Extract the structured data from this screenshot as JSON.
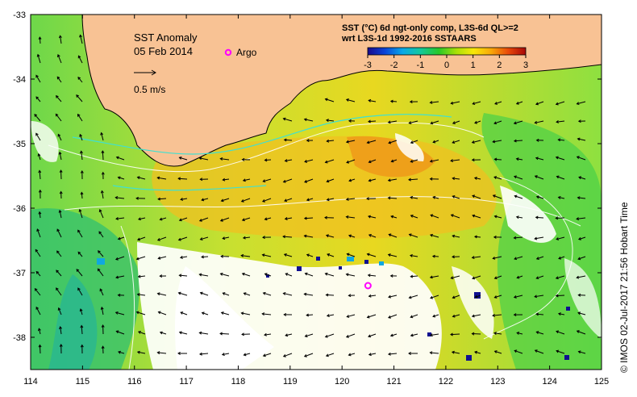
{
  "map": {
    "title": "SST Anomaly",
    "date": "05 Feb 2014",
    "legend_argo": "Argo",
    "velocity_scale_label": "0.5 m/s",
    "product_line1": "SST (°C) 6d ngt-only comp, L3S-6d QL>=2",
    "product_line2": "wrt L3S-1d 1992-2016 SSTAARS",
    "credit": "© IMOS 02-Jul-2017 21:56 Hobart Time",
    "lon_ticks": [
      "114",
      "115",
      "116",
      "117",
      "118",
      "119",
      "120",
      "121",
      "122",
      "123",
      "124",
      "125"
    ],
    "lat_ticks": [
      "-33",
      "-34",
      "-35",
      "-36",
      "-37",
      "-38"
    ],
    "colorbar_ticks": [
      "-3",
      "-2",
      "-1",
      "0",
      "1",
      "2",
      "3"
    ],
    "lon_range": [
      114,
      125
    ],
    "lat_range": [
      -38.5,
      -33
    ],
    "anomaly_range": [
      -3,
      3
    ],
    "argo_float": {
      "lon": 120.5,
      "lat": -37.2
    },
    "colors": {
      "land": "#f8c294",
      "argo": "#ff00ff",
      "colorbar": [
        "#1a0a8c",
        "#0a44d8",
        "#08a8e8",
        "#12c8a0",
        "#28c828",
        "#a8e008",
        "#f8e808",
        "#f8a808",
        "#e84808",
        "#a80808"
      ]
    }
  }
}
